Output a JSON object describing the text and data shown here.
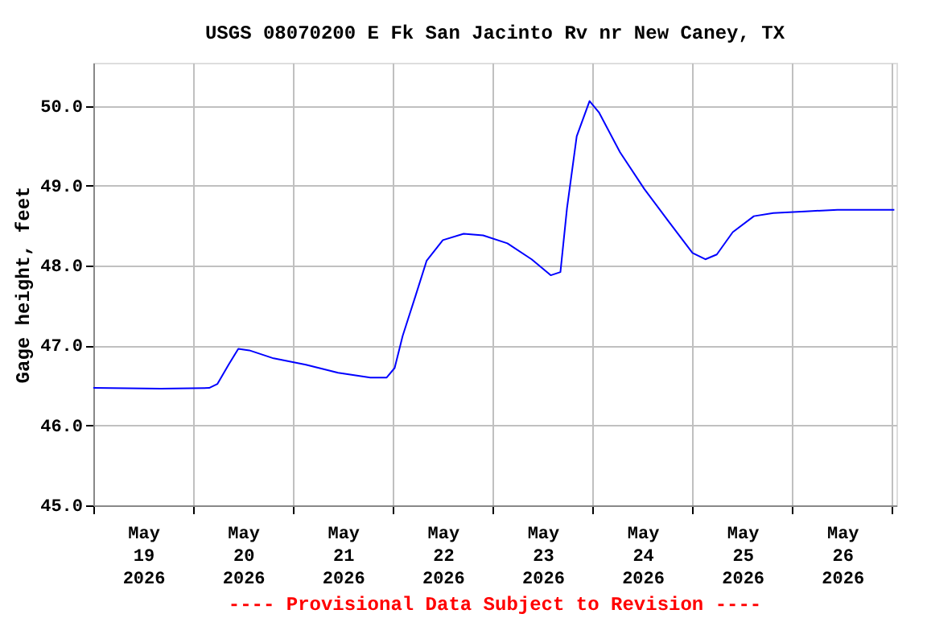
{
  "chart_data": {
    "type": "line",
    "title": "USGS 08070200 E Fk San Jacinto Rv nr New Caney, TX",
    "ylabel": "Gage height, feet",
    "annotations": [
      "---- Provisional Data Subject to Revision ----"
    ],
    "x": [
      "2026-05-19T00:00",
      "2026-05-19T16:15",
      "2026-05-20T03:50",
      "2026-05-20T05:50",
      "2026-05-20T08:30",
      "2026-05-20T10:50",
      "2026-05-20T13:30",
      "2026-05-20T19:20",
      "2026-05-21T03:05",
      "2026-05-21T10:50",
      "2026-05-21T18:35",
      "2026-05-21T22:30",
      "2026-05-22T00:25",
      "2026-05-22T02:20",
      "2026-05-22T05:25",
      "2026-05-22T08:05",
      "2026-05-22T12:00",
      "2026-05-22T17:00",
      "2026-05-22T21:40",
      "2026-05-23T03:30",
      "2026-05-23T09:20",
      "2026-05-23T13:55",
      "2026-05-23T16:15",
      "2026-05-23T17:50",
      "2026-05-23T20:10",
      "2026-05-23T23:15",
      "2026-05-24T01:30",
      "2026-05-24T06:35",
      "2026-05-24T12:25",
      "2026-05-24T18:10",
      "2026-05-25T00:00",
      "2026-05-25T03:05",
      "2026-05-25T05:50",
      "2026-05-25T09:40",
      "2026-05-25T14:45",
      "2026-05-25T19:25",
      "2026-05-26T03:05",
      "2026-05-26T10:50",
      "2026-05-27T00:30"
    ],
    "series": [
      {
        "color": "#0000ff",
        "values": [
          46.47,
          46.46,
          46.47,
          46.52,
          46.76,
          46.96,
          46.94,
          46.84,
          46.76,
          46.66,
          46.6,
          46.6,
          46.72,
          47.12,
          47.62,
          48.06,
          48.32,
          48.4,
          48.38,
          48.28,
          48.08,
          47.88,
          47.92,
          48.72,
          49.62,
          50.06,
          49.92,
          49.42,
          48.96,
          48.56,
          48.16,
          48.08,
          48.14,
          48.42,
          48.62,
          48.66,
          48.68,
          48.7,
          48.7
        ]
      }
    ],
    "xlim": [
      "2026-05-19T00:00",
      "2026-05-27T01:00"
    ],
    "xticks": [
      {
        "value": "2026-05-19T00:00",
        "label": null
      },
      {
        "value": "2026-05-19T12:00",
        "label": "May 19 2026"
      },
      {
        "value": "2026-05-20T00:00",
        "label": null
      },
      {
        "value": "2026-05-20T12:00",
        "label": "May 20 2026"
      },
      {
        "value": "2026-05-21T00:00",
        "label": null
      },
      {
        "value": "2026-05-21T12:00",
        "label": "May 21 2026"
      },
      {
        "value": "2026-05-22T00:00",
        "label": null
      },
      {
        "value": "2026-05-22T12:00",
        "label": "May 22 2026"
      },
      {
        "value": "2026-05-23T00:00",
        "label": null
      },
      {
        "value": "2026-05-23T12:00",
        "label": "May 23 2026"
      },
      {
        "value": "2026-05-24T00:00",
        "label": null
      },
      {
        "value": "2026-05-24T12:00",
        "label": "May 24 2026"
      },
      {
        "value": "2026-05-25T00:00",
        "label": null
      },
      {
        "value": "2026-05-25T12:00",
        "label": "May 25 2026"
      },
      {
        "value": "2026-05-26T00:00",
        "label": null
      },
      {
        "value": "2026-05-26T12:00",
        "label": "May 26 2026"
      },
      {
        "value": "2026-05-27T00:00",
        "label": null
      }
    ],
    "ylim": [
      45.0,
      50.54
    ],
    "yticks": [
      {
        "value": 45,
        "label": "45.0"
      },
      {
        "value": 46,
        "label": "46.0"
      },
      {
        "value": 47,
        "label": "47.0"
      },
      {
        "value": 48,
        "label": "48.0"
      },
      {
        "value": 49,
        "label": "49.0"
      },
      {
        "value": 50,
        "label": "50.0"
      }
    ],
    "grid": true,
    "marker": "none",
    "line_style": "solid"
  }
}
